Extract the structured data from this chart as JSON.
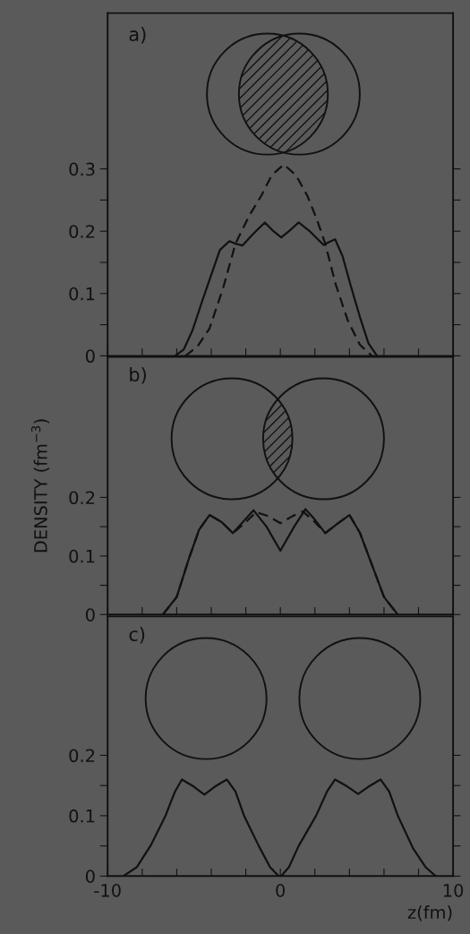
{
  "chart_data": [
    {
      "type": "line",
      "annotations": [
        "a)"
      ],
      "xlim": [
        -10,
        10
      ],
      "xticks": [
        -10,
        -8,
        -6,
        -4,
        -2,
        0,
        2,
        4,
        6,
        8,
        10
      ],
      "ylim": [
        0,
        0.55
      ],
      "yticks": [
        0,
        {
          "value": 0.05,
          "label": null
        },
        0.1,
        {
          "value": 0.15,
          "label": null
        },
        0.2,
        {
          "value": 0.25,
          "label": null
        },
        0.3
      ],
      "tick_labels": "y",
      "grid": false,
      "legend": false,
      "series": [
        {
          "color": "#111111",
          "line_style": "solid",
          "x": [
            -6.1,
            -5.6,
            -5.1,
            -4.5,
            -4.0,
            -3.5,
            -2.95,
            -2.6,
            -2.2,
            -1.6,
            -0.9,
            -0.4,
            0.05,
            0.5,
            1.06,
            1.7,
            2.5,
            2.85,
            3.17,
            3.6,
            4.1,
            4.6,
            5.1,
            5.6
          ],
          "values": [
            0,
            0.01,
            0.04,
            0.09,
            0.13,
            0.17,
            0.184,
            0.18,
            0.177,
            0.195,
            0.214,
            0.2,
            0.19,
            0.2,
            0.214,
            0.2,
            0.178,
            0.183,
            0.187,
            0.16,
            0.11,
            0.063,
            0.02,
            0
          ]
        },
        {
          "color": "#111111",
          "line_style": "dashed",
          "x": [
            -5.5,
            -4.8,
            -4.1,
            -3.3,
            -2.6,
            -1.8,
            -1.1,
            -0.5,
            0.2,
            0.9,
            1.56,
            2.1,
            2.6,
            3.2,
            3.9,
            4.6,
            5.3
          ],
          "values": [
            0,
            0.015,
            0.044,
            0.11,
            0.18,
            0.225,
            0.257,
            0.29,
            0.307,
            0.29,
            0.257,
            0.22,
            0.18,
            0.115,
            0.057,
            0.018,
            0
          ]
        }
      ]
    },
    {
      "type": "line",
      "annotations": [
        "b)"
      ],
      "ylabel": "DENSITY (fm$^{−3}$)",
      "xlim": [
        -10,
        10
      ],
      "xticks": [
        -10,
        -8,
        -6,
        -4,
        -2,
        0,
        2,
        4,
        6,
        8,
        10
      ],
      "ylim": [
        0,
        0.44
      ],
      "yticks": [
        0,
        {
          "value": 0.05,
          "label": null
        },
        0.1,
        {
          "value": 0.15,
          "label": null
        },
        0.2
      ],
      "tick_labels": "y",
      "grid": false,
      "legend": false,
      "series": [
        {
          "color": "#111111",
          "line_style": "solid",
          "x": [
            -6.8,
            -6.0,
            -5.3,
            -4.7,
            -4.1,
            -3.4,
            -2.75,
            -2.1,
            -1.55,
            -0.8,
            0,
            0.8,
            1.45,
            2.0,
            2.6,
            3.3,
            4.0,
            4.6,
            5.3,
            6.0,
            6.8
          ],
          "values": [
            0,
            0.03,
            0.095,
            0.145,
            0.17,
            0.158,
            0.139,
            0.16,
            0.178,
            0.15,
            0.109,
            0.15,
            0.18,
            0.162,
            0.139,
            0.155,
            0.17,
            0.14,
            0.085,
            0.03,
            0
          ]
        },
        {
          "color": "#111111",
          "line_style": "dashed",
          "x": [
            -6.8,
            -6.0,
            -5.3,
            -4.7,
            -4.1,
            -3.4,
            -2.75,
            -2.1,
            -1.4,
            -0.7,
            0,
            0.7,
            1.3,
            2.0,
            2.6,
            3.3,
            4.0,
            4.6,
            5.3,
            6.0,
            6.8
          ],
          "values": [
            0,
            0.03,
            0.095,
            0.145,
            0.17,
            0.158,
            0.139,
            0.155,
            0.175,
            0.168,
            0.156,
            0.168,
            0.176,
            0.158,
            0.139,
            0.155,
            0.17,
            0.14,
            0.085,
            0.03,
            0
          ]
        }
      ]
    },
    {
      "type": "line",
      "annotations": [
        "c)"
      ],
      "xlabel": "z(fm)",
      "xlim": [
        -10,
        10
      ],
      "xticks": [
        -10,
        {
          "value": -8,
          "label": null
        },
        {
          "value": -6,
          "label": null
        },
        {
          "value": -4,
          "label": null
        },
        {
          "value": -2,
          "label": null
        },
        0,
        {
          "value": 2,
          "label": null
        },
        {
          "value": 4,
          "label": null
        },
        {
          "value": 6,
          "label": null
        },
        {
          "value": 8,
          "label": null
        },
        10
      ],
      "ylim": [
        0,
        0.43
      ],
      "yticks": [
        0,
        {
          "value": 0.05,
          "label": null
        },
        0.1,
        {
          "value": 0.15,
          "label": null
        },
        0.2
      ],
      "grid": false,
      "legend": false,
      "series": [
        {
          "color": "#111111",
          "line_style": "solid",
          "x": [
            -9.1,
            -8.3,
            -7.5,
            -6.65,
            -6.1,
            -5.7,
            -5.0,
            -4.4,
            -3.8,
            -3.1,
            -2.6,
            -2.1,
            -1.25,
            -0.6,
            -0.1,
            0.05,
            0.5,
            1.06,
            2.07,
            2.7,
            3.17,
            3.9,
            4.5,
            5.1,
            5.8,
            6.3,
            6.8,
            7.7,
            8.4,
            9.0
          ],
          "values": [
            0,
            0.015,
            0.051,
            0.1,
            0.14,
            0.16,
            0.148,
            0.135,
            0.148,
            0.16,
            0.14,
            0.1,
            0.05,
            0.015,
            0,
            0,
            0.015,
            0.05,
            0.1,
            0.14,
            0.16,
            0.148,
            0.136,
            0.148,
            0.16,
            0.14,
            0.1,
            0.045,
            0.015,
            0
          ]
        }
      ]
    }
  ]
}
